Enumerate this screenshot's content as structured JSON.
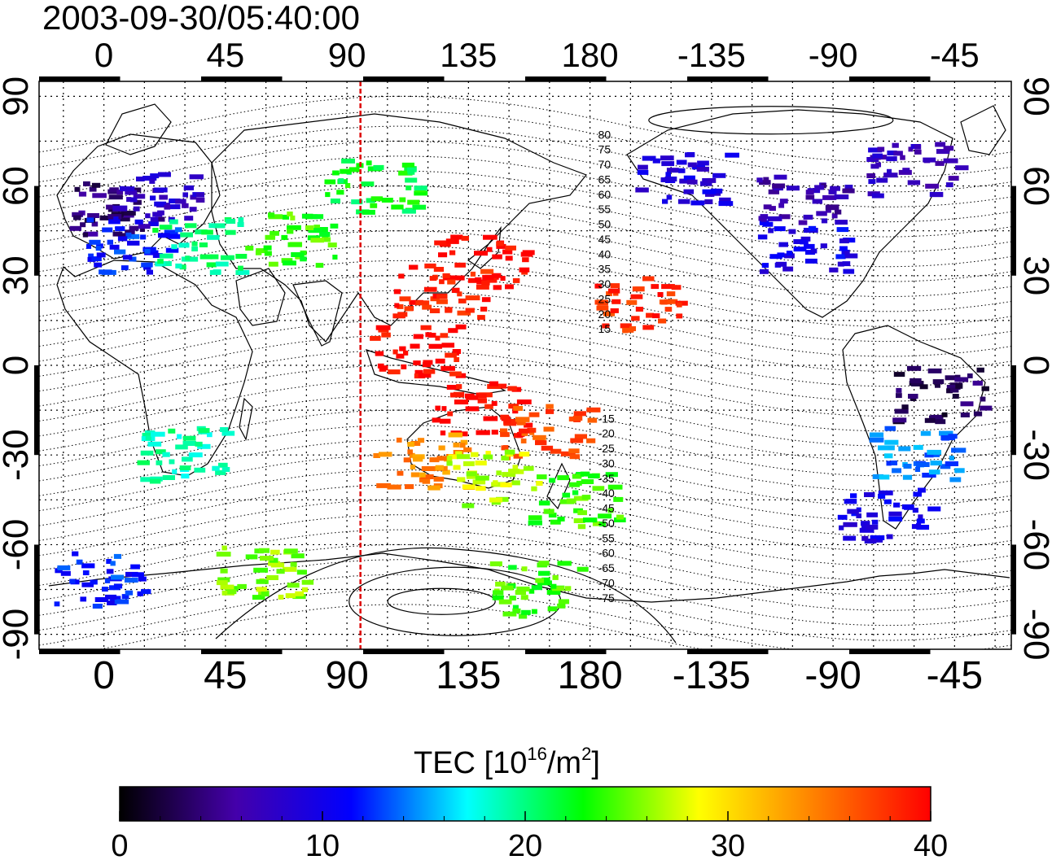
{
  "title": "2003-09-30/05:40:00",
  "colorbar": {
    "label_main": "TEC  [10",
    "label_sup1": "16",
    "label_mid": "/m",
    "label_sup2": "2",
    "label_end": "]",
    "range": [
      0,
      40
    ],
    "tick_values": [
      0,
      10,
      20,
      30,
      40
    ],
    "tick_labels": [
      "0",
      "10",
      "20",
      "30",
      "40"
    ],
    "colormap": [
      "#000000",
      "#4400aa",
      "#0000ff",
      "#00ffff",
      "#00ff00",
      "#ffff00",
      "#ff8000",
      "#ff0000"
    ]
  },
  "map": {
    "lon_tick_labels": [
      "0",
      "45",
      "90",
      "135",
      "180",
      "-135",
      "-90",
      "-45"
    ],
    "lat_tick_labels": [
      "90",
      "60",
      "30",
      "0",
      "-30",
      "-60",
      "-90"
    ],
    "lon_ticks": [
      0,
      45,
      90,
      135,
      180,
      225,
      270,
      315
    ],
    "lat_ticks": [
      90,
      60,
      30,
      0,
      -30,
      -60,
      -90
    ],
    "lon_range": [
      -24,
      336
    ],
    "lat_range": [
      -95,
      95
    ],
    "terminator_longitude": 95,
    "terminator_color": "#dd0000",
    "contour_labels": [
      "80",
      "75",
      "70",
      "65",
      "60",
      "55",
      "50",
      "45",
      "40",
      "35",
      "30",
      "25",
      "20",
      "15",
      "-15",
      "-20",
      "-25",
      "-30",
      "-35",
      "-40",
      "-45",
      "-50",
      "-55",
      "-60",
      "-65",
      "-70",
      "-75"
    ],
    "tec_regions": [
      {
        "lon": 5,
        "lat": 52,
        "tec": 4
      },
      {
        "lon": 20,
        "lat": 55,
        "tec": 8
      },
      {
        "lon": 12,
        "lat": 40,
        "tec": 12
      },
      {
        "lon": 35,
        "lat": 40,
        "tec": 20
      },
      {
        "lon": 70,
        "lat": 42,
        "tec": 24
      },
      {
        "lon": 100,
        "lat": 60,
        "tec": 22
      },
      {
        "lon": 140,
        "lat": 35,
        "tec": 40
      },
      {
        "lon": 125,
        "lat": 25,
        "tec": 39
      },
      {
        "lon": 115,
        "lat": 5,
        "tec": 40
      },
      {
        "lon": 140,
        "lat": -15,
        "tec": 40
      },
      {
        "lon": 165,
        "lat": -22,
        "tec": 37
      },
      {
        "lon": 118,
        "lat": -32,
        "tec": 34
      },
      {
        "lon": 145,
        "lat": -38,
        "tec": 27
      },
      {
        "lon": 175,
        "lat": -45,
        "tec": 24
      },
      {
        "lon": 30,
        "lat": -30,
        "tec": 19
      },
      {
        "lon": 200,
        "lat": 20,
        "tec": 38
      },
      {
        "lon": 215,
        "lat": 62,
        "tec": 9
      },
      {
        "lon": 260,
        "lat": 40,
        "tec": 10
      },
      {
        "lon": 260,
        "lat": 55,
        "tec": 6
      },
      {
        "lon": 300,
        "lat": 65,
        "tec": 7
      },
      {
        "lon": 310,
        "lat": -10,
        "tec": 3
      },
      {
        "lon": 300,
        "lat": -30,
        "tec": 14
      },
      {
        "lon": 290,
        "lat": -50,
        "tec": 10
      },
      {
        "lon": 60,
        "lat": -70,
        "tec": 26
      },
      {
        "lon": 160,
        "lat": -75,
        "tec": 24
      },
      {
        "lon": 0,
        "lat": -72,
        "tec": 12
      }
    ]
  }
}
